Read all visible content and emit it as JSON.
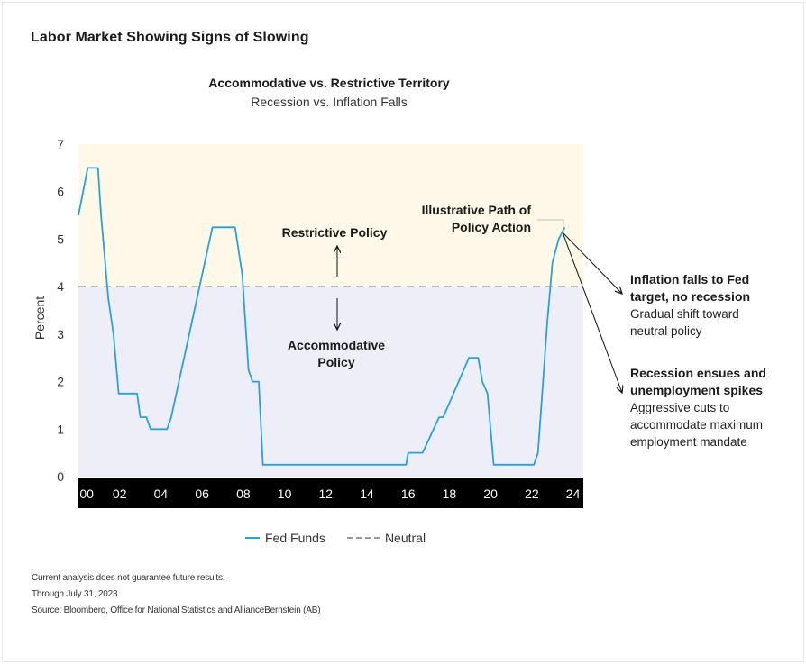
{
  "page": {
    "title": "Labor Market Showing Signs of Slowing",
    "notes": [
      "Current analysis does not guarantee future results.",
      "Through July 31, 2023",
      "Source: Bloomberg, Office for National Statistics and AllianceBernstein (AB)"
    ]
  },
  "annotations": {
    "restrictive": "Restrictive Policy",
    "accommodative_line1": "Accommodative",
    "accommodative_line2": "Policy",
    "path_line1": "Illustrative Path of",
    "path_line2": "Policy Action",
    "scenario1": {
      "title_line1": "Inflation falls to Fed",
      "title_line2": "target, no recession",
      "desc_line1": "Gradual shift toward",
      "desc_line2": "neutral policy"
    },
    "scenario2": {
      "title_line1": "Recession ensues and",
      "title_line2": "unemployment spikes",
      "desc_line1": "Aggressive cuts to",
      "desc_line2": "accommodate maximum",
      "desc_line3": "employment mandate"
    }
  },
  "chart_data": {
    "type": "line",
    "title": "Accommodative vs. Restrictive Territory",
    "subtitle": "Recession vs. Inflation Falls",
    "ylabel": "Percent",
    "xlabel": "",
    "xlim": [
      2000,
      2024.5
    ],
    "ylim": [
      0,
      7
    ],
    "y_ticks": [
      "0",
      "1",
      "2",
      "3",
      "4",
      "5",
      "6",
      "7"
    ],
    "x_ticks": [
      {
        "x": 2000.4,
        "label": "00"
      },
      {
        "x": 2002,
        "label": "02"
      },
      {
        "x": 2004,
        "label": "04"
      },
      {
        "x": 2006,
        "label": "06"
      },
      {
        "x": 2008,
        "label": "08"
      },
      {
        "x": 2010,
        "label": "10"
      },
      {
        "x": 2012,
        "label": "12"
      },
      {
        "x": 2014,
        "label": "14"
      },
      {
        "x": 2016,
        "label": "16"
      },
      {
        "x": 2018,
        "label": "18"
      },
      {
        "x": 2020,
        "label": "20"
      },
      {
        "x": 2022,
        "label": "22"
      },
      {
        "x": 2024,
        "label": "24"
      }
    ],
    "neutral_rate": 4,
    "zones": {
      "restrictive_color": "#fdf8e8",
      "accommodative_color": "#eeeef8"
    },
    "series": [
      {
        "name": "Fed Funds",
        "color": "#2ba1d6",
        "points": [
          [
            2000.0,
            5.5
          ],
          [
            2000.45,
            6.5
          ],
          [
            2000.95,
            6.5
          ],
          [
            2001.1,
            5.5
          ],
          [
            2001.45,
            3.75
          ],
          [
            2001.7,
            3.0
          ],
          [
            2001.95,
            1.75
          ],
          [
            2002.85,
            1.75
          ],
          [
            2003.0,
            1.25
          ],
          [
            2003.3,
            1.25
          ],
          [
            2003.5,
            1.0
          ],
          [
            2004.3,
            1.0
          ],
          [
            2004.5,
            1.25
          ],
          [
            2006.5,
            5.25
          ],
          [
            2007.6,
            5.25
          ],
          [
            2007.95,
            4.25
          ],
          [
            2008.25,
            2.25
          ],
          [
            2008.45,
            2.0
          ],
          [
            2008.75,
            2.0
          ],
          [
            2008.95,
            0.25
          ],
          [
            2015.9,
            0.25
          ],
          [
            2016.0,
            0.5
          ],
          [
            2016.7,
            0.5
          ],
          [
            2017.5,
            1.25
          ],
          [
            2017.7,
            1.25
          ],
          [
            2018.95,
            2.5
          ],
          [
            2019.4,
            2.5
          ],
          [
            2019.6,
            2.0
          ],
          [
            2019.85,
            1.75
          ],
          [
            2020.15,
            0.25
          ],
          [
            2022.1,
            0.25
          ],
          [
            2022.3,
            0.5
          ],
          [
            2022.75,
            3.25
          ],
          [
            2023.0,
            4.5
          ],
          [
            2023.3,
            5.0
          ],
          [
            2023.6,
            5.25
          ]
        ]
      },
      {
        "name": "Neutral",
        "color": "#9a9a9a",
        "value": 4
      }
    ]
  }
}
